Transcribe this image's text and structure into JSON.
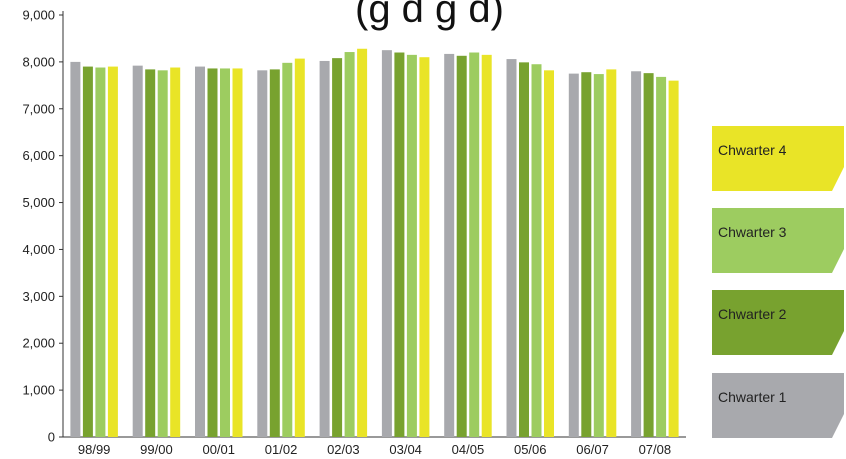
{
  "chart_data": {
    "type": "bar",
    "title": "(g d g d)",
    "xlabel": "",
    "ylabel": "",
    "ylim": [
      0,
      9000
    ],
    "yticks": [
      0,
      1000,
      2000,
      3000,
      4000,
      5000,
      6000,
      7000,
      8000,
      9000
    ],
    "ytick_labels": [
      "0",
      "1,000",
      "2,000",
      "3,000",
      "4,000",
      "5,000",
      "6,000",
      "7,000",
      "8,000",
      "9,000"
    ],
    "categories": [
      "98/99",
      "99/00",
      "00/01",
      "01/02",
      "02/03",
      "03/04",
      "04/05",
      "05/06",
      "06/07",
      "07/08"
    ],
    "grid": false,
    "legend_position": "right",
    "series": [
      {
        "name": "Chwarter 1",
        "color": "#a8a9ad",
        "values": [
          8000,
          7920,
          7900,
          7820,
          8020,
          8250,
          8170,
          8060,
          7750,
          7800
        ]
      },
      {
        "name": "Chwarter 2",
        "color": "#78a22f",
        "values": [
          7900,
          7840,
          7860,
          7840,
          8080,
          8200,
          8130,
          7990,
          7780,
          7760
        ]
      },
      {
        "name": "Chwarter 3",
        "color": "#9dcc60",
        "values": [
          7880,
          7820,
          7860,
          7980,
          8210,
          8150,
          8200,
          7950,
          7740,
          7680
        ]
      },
      {
        "name": "Chwarter 4",
        "color": "#e9e427",
        "values": [
          7900,
          7880,
          7860,
          8070,
          8280,
          8100,
          8150,
          7820,
          7840,
          7600
        ]
      }
    ]
  }
}
